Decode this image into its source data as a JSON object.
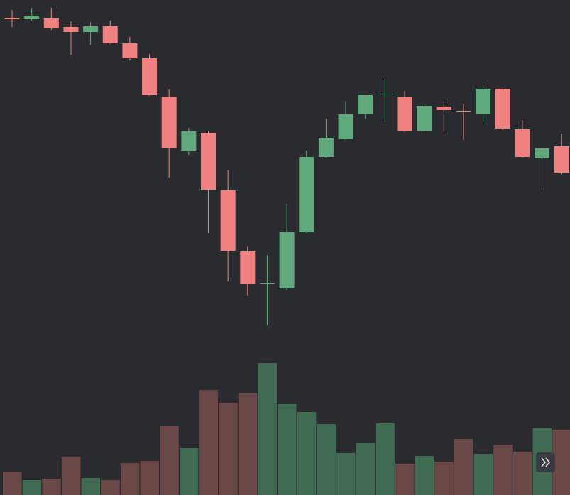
{
  "chart_data": {
    "type": "candlestick",
    "up_color": "#5fa97d",
    "down_color": "#ef8181",
    "volume_up_color": "#3f6b53",
    "volume_down_color": "#6a4848",
    "ylim": [
      0,
      697
    ],
    "y2lim": [
      0,
      697
    ],
    "open": [
      672,
      670,
      671,
      659,
      652,
      660,
      636,
      615,
      561,
      484,
      510,
      429,
      343,
      297,
      291,
      370,
      476,
      501,
      537,
      564,
      561,
      513,
      547,
      540,
      537,
      572,
      515,
      474,
      491
    ],
    "high": [
      683,
      686,
      686,
      667,
      666,
      668,
      645,
      621,
      571,
      517,
      512,
      457,
      350,
      338,
      410,
      485,
      530,
      555,
      563,
      587,
      569,
      551,
      555,
      551,
      578,
      575,
      528,
      488,
      509
    ],
    "low": [
      659,
      668,
      655,
      620,
      634,
      635,
      612,
      562,
      447,
      479,
      369,
      301,
      280,
      239,
      289,
      369,
      475,
      500,
      530,
      525,
      511,
      512,
      511,
      500,
      526,
      514,
      475,
      430,
      451
    ],
    "close": [
      670,
      675,
      657,
      652,
      660,
      636,
      615,
      563,
      489,
      512,
      430,
      344,
      297,
      298,
      370,
      476,
      503,
      536,
      563,
      565,
      513,
      548,
      542,
      539,
      572,
      516,
      476,
      488,
      454
    ],
    "volume": [
      33,
      21,
      23,
      54,
      24,
      21,
      45,
      48,
      97,
      66,
      148,
      130,
      143,
      186,
      128,
      117,
      100,
      59,
      73,
      101,
      44,
      55,
      47,
      79,
      58,
      71,
      61,
      94,
      92
    ]
  }
}
